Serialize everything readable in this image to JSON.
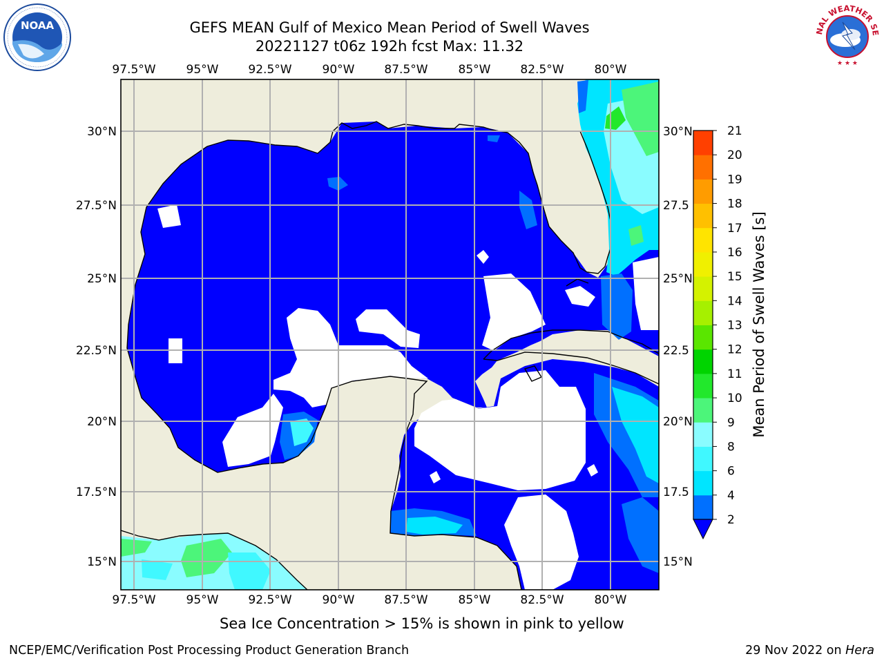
{
  "header": {
    "title": "GEFS MEAN Gulf of Mexico Mean Period of Swell Waves",
    "subtitle": "20221127 t06z 192h fcst   Max: 11.32"
  },
  "logos": {
    "left": "noaa-logo",
    "right": "nws-logo",
    "nws_text_top": "NATIONAL WEATHER SERVICE"
  },
  "map": {
    "lon_ticks": [
      "97.5°W",
      "95°W",
      "92.5°W",
      "90°W",
      "87.5°W",
      "85°W",
      "82.5°W",
      "80°W"
    ],
    "lat_ticks_left": [
      "30°N",
      "27.5°N",
      "25°N",
      "22.5°N",
      "20°N",
      "17.5°N",
      "15°N"
    ],
    "lat_ticks_right": [
      "30°N",
      "27.5",
      "25°N",
      "22.5",
      "20°N",
      "17.5",
      "15°N"
    ],
    "colors": {
      "land": "#eeeddc",
      "ocean_low": "#0000ff",
      "grid": "#b0b0b0",
      "no_data": "#ffffff"
    }
  },
  "colorbar": {
    "label": "Mean Period of Swell Waves [s]",
    "ticks": [
      "2",
      "4",
      "6",
      "8",
      "9",
      "10",
      "11",
      "12",
      "13",
      "14",
      "15",
      "16",
      "17",
      "18",
      "19",
      "20",
      "21"
    ],
    "colors": [
      "#0070ff",
      "#00e5ff",
      "#40f8ff",
      "#8afcff",
      "#4cf57a",
      "#22e82c",
      "#00d400",
      "#5ae600",
      "#a6f000",
      "#d4f200",
      "#f0f000",
      "#ffe400",
      "#ffc000",
      "#ff9c00",
      "#ff7000",
      "#ff4000",
      "#ff0000"
    ],
    "extend_color": "#0000ff"
  },
  "notes": {
    "ice": "Sea Ice Concentration > 15% is shown in pink to yellow"
  },
  "footer": {
    "left": "NCEP/EMC/Verification Post Processing Product Generation Branch",
    "right_date": "29 Nov 2022 on ",
    "right_host": "Hera"
  }
}
